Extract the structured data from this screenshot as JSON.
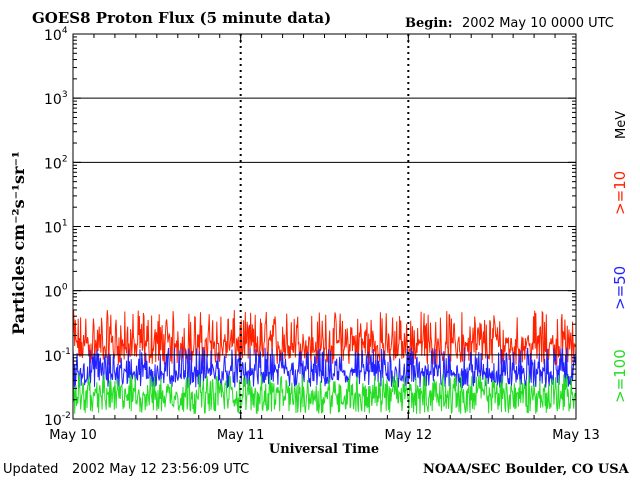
{
  "header": {
    "title": "GOES8 Proton Flux (5 minute data)",
    "begin_label": "Begin:",
    "begin_value": "2002 May 10 0000 UTC"
  },
  "footer": {
    "updated_label": "Updated",
    "updated_value": "2002 May 12 23:56:09 UTC",
    "credit": "NOAA/SEC Boulder, CO USA"
  },
  "legend": {
    "unit": "MeV",
    "items": [
      {
        "label": ">=10",
        "color": "#ff2200"
      },
      {
        "label": ">=50",
        "color": "#2222ff"
      },
      {
        "label": ">=100",
        "color": "#22dd22"
      }
    ]
  },
  "chart_data": {
    "type": "line",
    "title": "GOES8 Proton Flux (5 minute data)",
    "xlabel": "Universal Time",
    "ylabel": "Particles cm⁻²s⁻¹sr⁻¹",
    "yscale": "log",
    "ylim": [
      0.01,
      10000
    ],
    "xlim": [
      0,
      3
    ],
    "y_ticks": [
      {
        "value": 0.01,
        "base": "10",
        "exp": "-2"
      },
      {
        "value": 0.1,
        "base": "10",
        "exp": "-1"
      },
      {
        "value": 1,
        "base": "10",
        "exp": "0"
      },
      {
        "value": 10,
        "base": "10",
        "exp": "1"
      },
      {
        "value": 100,
        "base": "10",
        "exp": "2"
      },
      {
        "value": 1000,
        "base": "10",
        "exp": "3"
      },
      {
        "value": 10000,
        "base": "10",
        "exp": "4"
      }
    ],
    "x_ticks": [
      {
        "value": 0,
        "label": "May 10"
      },
      {
        "value": 1,
        "label": "May 11"
      },
      {
        "value": 2,
        "label": "May 12"
      },
      {
        "value": 3,
        "label": "May 13"
      }
    ],
    "hlines": [
      {
        "value": 1000,
        "style": "solid"
      },
      {
        "value": 100,
        "style": "solid"
      },
      {
        "value": 10,
        "style": "dashed"
      },
      {
        "value": 1,
        "style": "solid"
      },
      {
        "value": 0.1,
        "style": "solid"
      }
    ],
    "series": [
      {
        "name": ">=10 MeV",
        "color": "#ff2200",
        "range": [
          0.07,
          0.5
        ],
        "typical": 0.15
      },
      {
        "name": ">=50 MeV",
        "color": "#2222ff",
        "range": [
          0.03,
          0.13
        ],
        "typical": 0.055
      },
      {
        "name": ">=100 MeV",
        "color": "#22dd22",
        "range": [
          0.012,
          0.05
        ],
        "typical": 0.025
      }
    ],
    "grid": true,
    "legend_position": "right"
  }
}
